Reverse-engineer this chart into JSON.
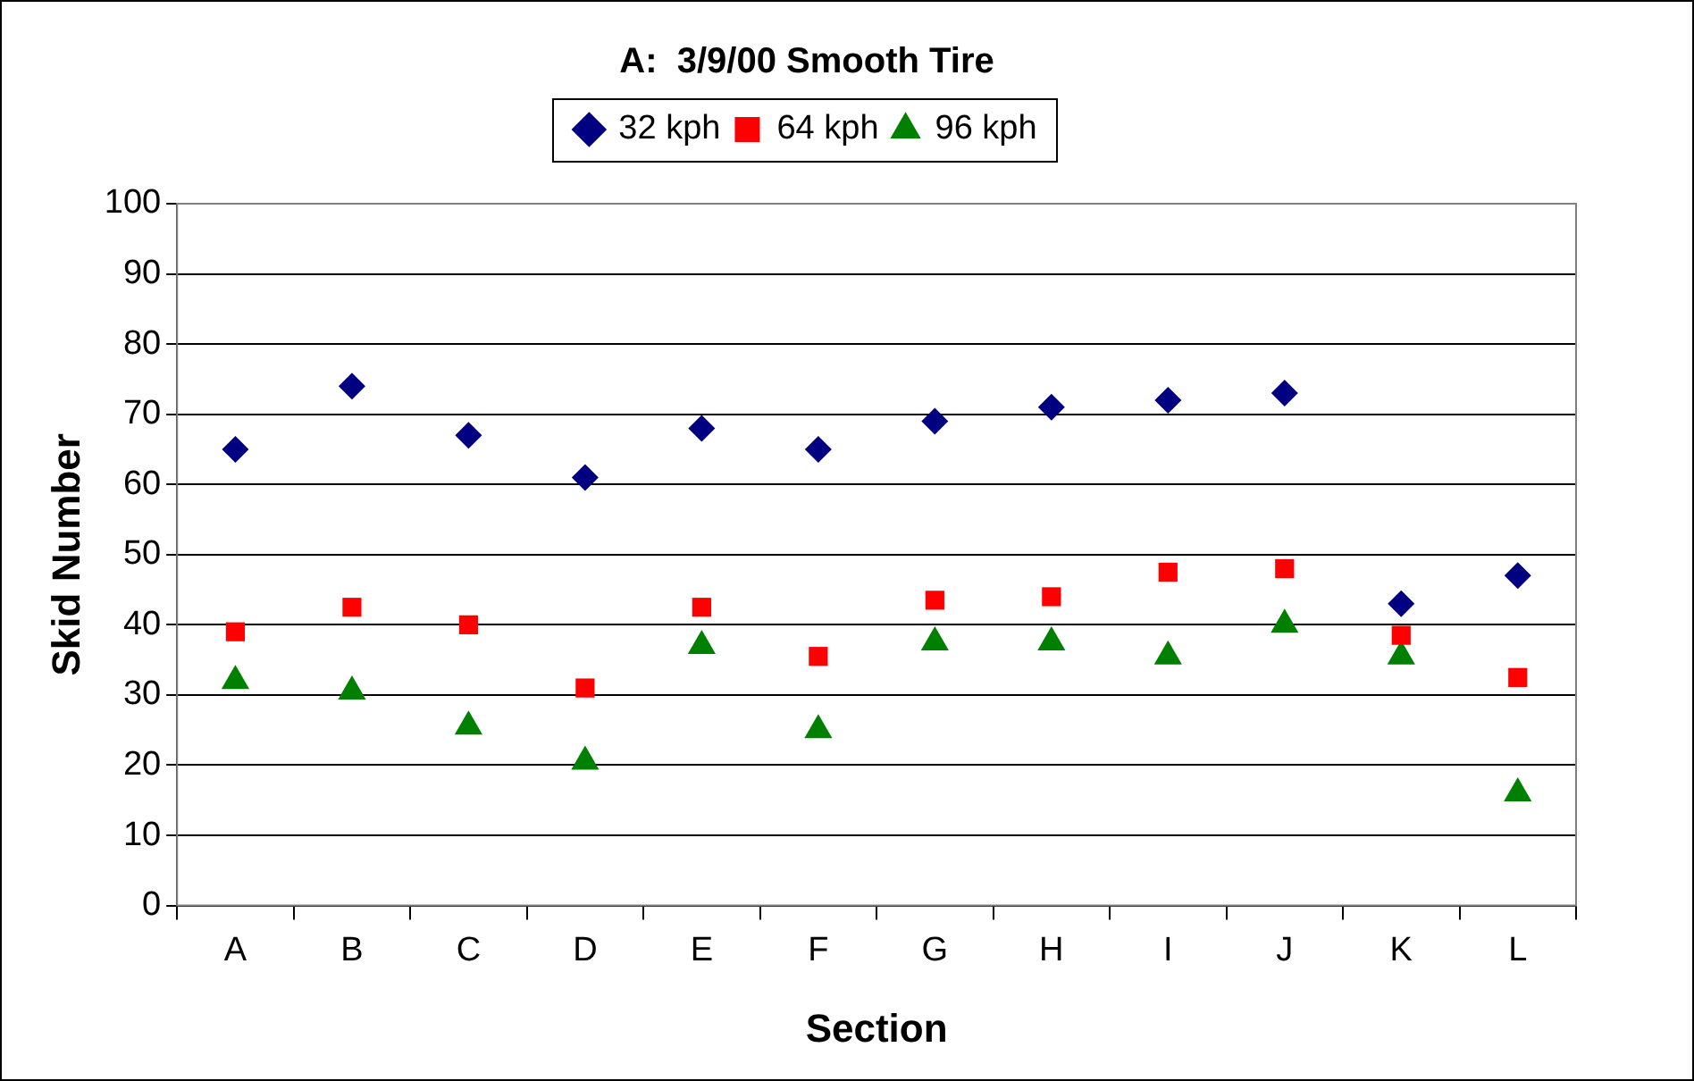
{
  "chart_data": {
    "type": "scatter",
    "title": "A:  3/9/00 Smooth Tire",
    "xlabel": "Section",
    "ylabel": "Skid Number",
    "categories": [
      "A",
      "B",
      "C",
      "D",
      "E",
      "F",
      "G",
      "H",
      "I",
      "J",
      "K",
      "L"
    ],
    "series": [
      {
        "name": "32 kph",
        "color": "#000080",
        "marker": "diamond",
        "values": [
          65,
          74,
          67,
          61,
          68,
          65,
          69,
          71,
          72,
          73,
          43,
          47
        ]
      },
      {
        "name": "64 kph",
        "color": "#ff0000",
        "marker": "square",
        "values": [
          39,
          42.5,
          40,
          31,
          42.5,
          35.5,
          43.5,
          44,
          47.5,
          48,
          38.5,
          32.5
        ]
      },
      {
        "name": "96 kph",
        "color": "#008000",
        "marker": "triangle",
        "values": [
          32,
          30.5,
          25.5,
          20.5,
          37,
          25,
          37.5,
          37.5,
          35.5,
          40,
          35.5,
          16
        ]
      }
    ],
    "ylim": [
      0,
      100
    ],
    "yticks": [
      0,
      10,
      20,
      30,
      40,
      50,
      60,
      70,
      80,
      90,
      100
    ],
    "grid": "y",
    "legend": "top"
  }
}
